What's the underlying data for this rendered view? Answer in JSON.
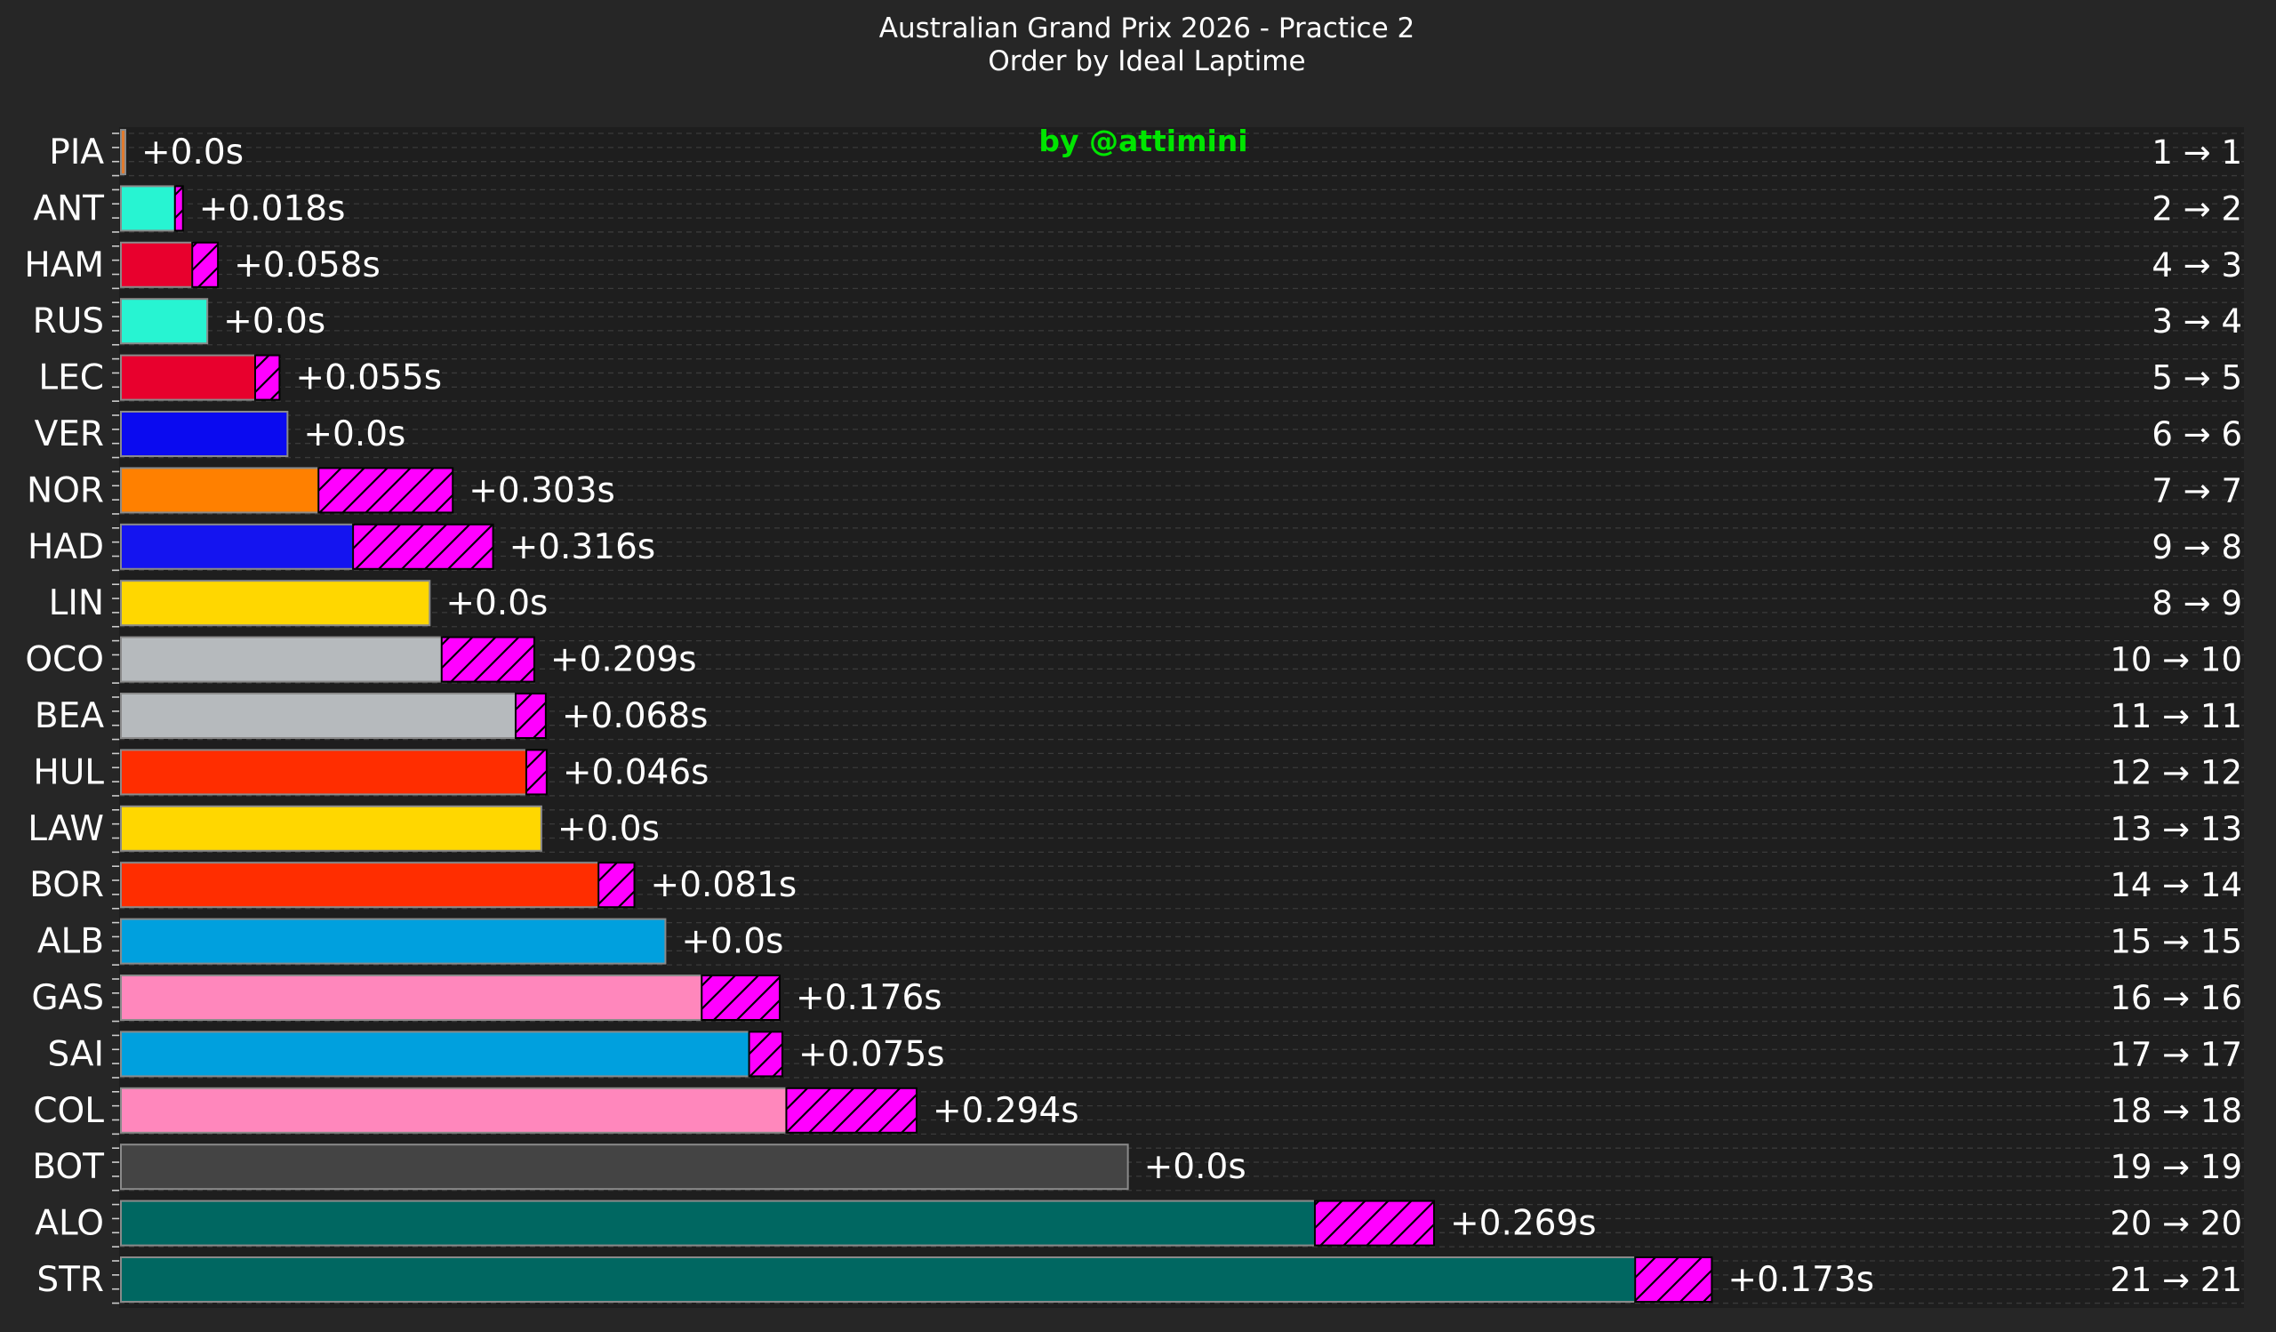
{
  "chart_data": {
    "type": "bar",
    "orientation": "horizontal",
    "title": "Australian Grand Prix 2026 - Practice 2",
    "subtitle": "Order by Ideal Laptime",
    "watermark": "by @attimini",
    "x_unit": "seconds",
    "grid": true,
    "legend": "none",
    "rows": [
      {
        "driver": "PIA",
        "bar_value": 0.0,
        "gap": 0.0,
        "gap_label": "+0.0s",
        "rank_change": "1 → 1",
        "color": "#e07a2e"
      },
      {
        "driver": "ANT",
        "bar_value": 0.122,
        "gap": 0.018,
        "gap_label": "+0.018s",
        "rank_change": "2 → 2",
        "color": "#27f4d2"
      },
      {
        "driver": "HAM",
        "bar_value": 0.161,
        "gap": 0.058,
        "gap_label": "+0.058s",
        "rank_change": "4 → 3",
        "color": "#e8002d"
      },
      {
        "driver": "RUS",
        "bar_value": 0.195,
        "gap": 0.0,
        "gap_label": "+0.0s",
        "rank_change": "3 → 4",
        "color": "#27f4d2"
      },
      {
        "driver": "LEC",
        "bar_value": 0.303,
        "gap": 0.055,
        "gap_label": "+0.055s",
        "rank_change": "5 → 5",
        "color": "#e8002d"
      },
      {
        "driver": "VER",
        "bar_value": 0.376,
        "gap": 0.0,
        "gap_label": "+0.0s",
        "rank_change": "6 → 6",
        "color": "#0a0af0"
      },
      {
        "driver": "NOR",
        "bar_value": 0.446,
        "gap": 0.303,
        "gap_label": "+0.303s",
        "rank_change": "7 → 7",
        "color": "#ff8000"
      },
      {
        "driver": "HAD",
        "bar_value": 0.524,
        "gap": 0.316,
        "gap_label": "+0.316s",
        "rank_change": "9 → 8",
        "color": "#1414f0"
      },
      {
        "driver": "LIN",
        "bar_value": 0.697,
        "gap": 0.0,
        "gap_label": "+0.0s",
        "rank_change": "8 → 9",
        "color": "#ffd700"
      },
      {
        "driver": "OCO",
        "bar_value": 0.724,
        "gap": 0.209,
        "gap_label": "+0.209s",
        "rank_change": "10 → 10",
        "color": "#b6babd"
      },
      {
        "driver": "BEA",
        "bar_value": 0.891,
        "gap": 0.068,
        "gap_label": "+0.068s",
        "rank_change": "11 → 11",
        "color": "#b6babd"
      },
      {
        "driver": "HUL",
        "bar_value": 0.915,
        "gap": 0.046,
        "gap_label": "+0.046s",
        "rank_change": "12 → 12",
        "color": "#ff2d00"
      },
      {
        "driver": "LAW",
        "bar_value": 0.949,
        "gap": 0.0,
        "gap_label": "+0.0s",
        "rank_change": "13 → 13",
        "color": "#ffd700"
      },
      {
        "driver": "BOR",
        "bar_value": 1.078,
        "gap": 0.081,
        "gap_label": "+0.081s",
        "rank_change": "14 → 14",
        "color": "#ff2d00"
      },
      {
        "driver": "ALB",
        "bar_value": 1.229,
        "gap": 0.0,
        "gap_label": "+0.0s",
        "rank_change": "15 → 15",
        "color": "#00a0de"
      },
      {
        "driver": "GAS",
        "bar_value": 1.311,
        "gap": 0.176,
        "gap_label": "+0.176s",
        "rank_change": "16 → 16",
        "color": "#ff87bc"
      },
      {
        "driver": "SAI",
        "bar_value": 1.418,
        "gap": 0.075,
        "gap_label": "+0.075s",
        "rank_change": "17 → 17",
        "color": "#00a0de"
      },
      {
        "driver": "COL",
        "bar_value": 1.502,
        "gap": 0.294,
        "gap_label": "+0.294s",
        "rank_change": "18 → 18",
        "color": "#ff87bc"
      },
      {
        "driver": "BOT",
        "bar_value": 2.273,
        "gap": 0.0,
        "gap_label": "+0.0s",
        "rank_change": "19 → 19",
        "color": "#444444"
      },
      {
        "driver": "ALO",
        "bar_value": 2.695,
        "gap": 0.269,
        "gap_label": "+0.269s",
        "rank_change": "20 → 20",
        "color": "#006761"
      },
      {
        "driver": "STR",
        "bar_value": 3.418,
        "gap": 0.173,
        "gap_label": "+0.173s",
        "rank_change": "21 → 21",
        "color": "#006761"
      }
    ],
    "gap_fill_color": "#ff00ff",
    "gap_hatch": "diagonal",
    "background_color": "#262626",
    "plot_background_color": "#1e1e1e",
    "title_color": "#ffffff",
    "watermark_color": "#00ff00",
    "label_color": "#ffffff"
  }
}
